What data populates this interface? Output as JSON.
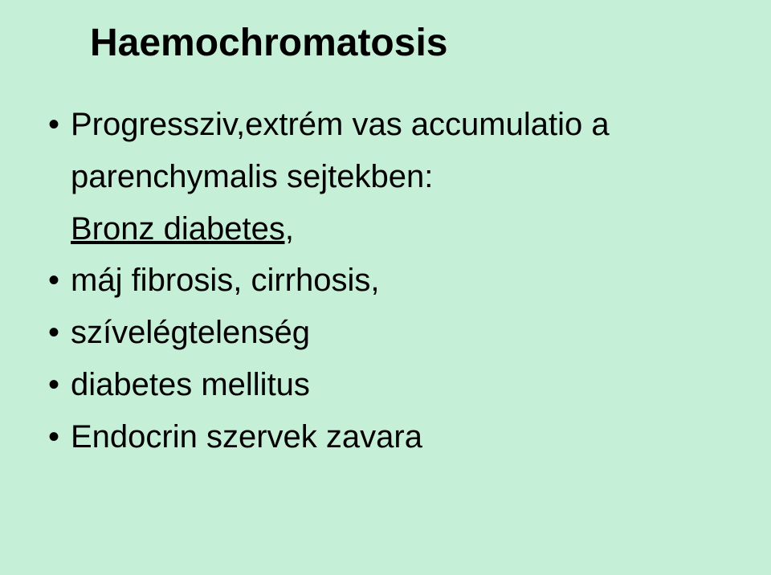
{
  "background_color": "#c6efd7",
  "text_color": "#000000",
  "font_family": "Arial",
  "title": {
    "text": "Haemochromatosis",
    "font_size_pt": 36,
    "font_weight": "bold"
  },
  "body_font_size_pt": 30,
  "bullet_glyph": "•",
  "items": [
    {
      "type": "bullet",
      "text": "Progressziv,extrém vas accumulatio a parenchymalis sejtekben:",
      "underline": false
    },
    {
      "type": "plain",
      "text": "Bronz diabetes,",
      "underline": true
    },
    {
      "type": "bullet",
      "text": "máj fibrosis, cirrhosis,",
      "underline": false
    },
    {
      "type": "bullet",
      "text": "szívelégtelenség",
      "underline": false
    },
    {
      "type": "bullet",
      "text": "diabetes mellitus",
      "underline": false
    },
    {
      "type": "bullet",
      "text": "Endocrin szervek zavara",
      "underline": false
    }
  ]
}
